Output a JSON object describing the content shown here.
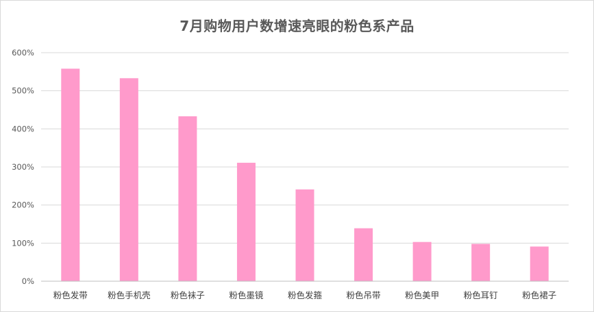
{
  "chart_data": {
    "type": "bar",
    "title": "7月购物用户数增速亮眼的粉色系产品",
    "xlabel": "",
    "ylabel": "",
    "categories": [
      "粉色发带",
      "粉色手机壳",
      "粉色袜子",
      "粉色墨镜",
      "粉色发箍",
      "粉色吊带",
      "粉色美甲",
      "粉色耳钉",
      "粉色裙子"
    ],
    "values": [
      558,
      533,
      433,
      311,
      241,
      139,
      103,
      98,
      91
    ],
    "value_unit": "%",
    "ylim": [
      0,
      600
    ],
    "yticks": [
      0,
      100,
      200,
      300,
      400,
      500,
      600
    ],
    "ytick_labels": [
      "0%",
      "100%",
      "200%",
      "300%",
      "400%",
      "500%",
      "600%"
    ],
    "grid": true,
    "legend": "none",
    "colors": {
      "bar": "#ff9acb",
      "grid": "#d9d9d9",
      "axis": "#bfbfbf",
      "title": "#595959",
      "tick_text": "#595959"
    }
  }
}
